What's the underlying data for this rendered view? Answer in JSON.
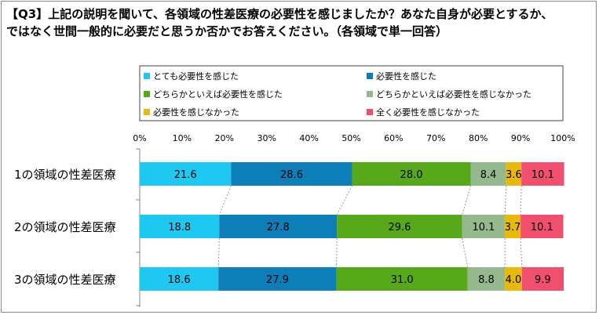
{
  "title_lines": [
    "【Q3】上記の説明を聞いて、各領域の性差医療の必要性を感じましたか？あなた自身が必要とするか、",
    "ではなく世間一般的に必要だと思うか否かでお答えください。（各領域で単一回答）"
  ],
  "chart_data": {
    "type": "bar",
    "orientation": "horizontal",
    "stacked": "percent",
    "xlim": [
      0,
      100
    ],
    "x_ticks": [
      "0%",
      "10%",
      "20%",
      "30%",
      "40%",
      "50%",
      "60%",
      "70%",
      "80%",
      "90%",
      "100%"
    ],
    "categories": [
      "1の領域の性差医療",
      "2の領域の性差医療",
      "3の領域の性差医療"
    ],
    "series": [
      {
        "name": "とても必要性を感じた",
        "color": "#1ec8f0",
        "values": [
          21.6,
          18.8,
          18.6
        ]
      },
      {
        "name": "必要性を感じた",
        "color": "#0e7eb8",
        "values": [
          28.6,
          27.8,
          27.9
        ]
      },
      {
        "name": "どちらかといえば必要性を感じた",
        "color": "#58a81c",
        "values": [
          28.0,
          29.6,
          31.0
        ]
      },
      {
        "name": "どちらかといえば必要性を感じなかった",
        "color": "#94b98c",
        "values": [
          8.4,
          10.1,
          8.8
        ]
      },
      {
        "name": "必要性を感じなかった",
        "color": "#e8b90a",
        "values": [
          3.6,
          3.7,
          4.0
        ]
      },
      {
        "name": "全く必要性を感じなかった",
        "color": "#f0506e",
        "values": [
          10.1,
          10.1,
          9.9
        ]
      }
    ],
    "value_labels": [
      [
        "21.6",
        "28.6",
        "28.0",
        "8.4",
        "3.6",
        "10.1"
      ],
      [
        "18.8",
        "27.8",
        "29.6",
        "10.1",
        "3.7",
        "10.1"
      ],
      [
        "18.6",
        "27.9",
        "31.0",
        "8.8",
        "4.0",
        "9.9"
      ]
    ],
    "legend_position": "top",
    "grid": false
  }
}
